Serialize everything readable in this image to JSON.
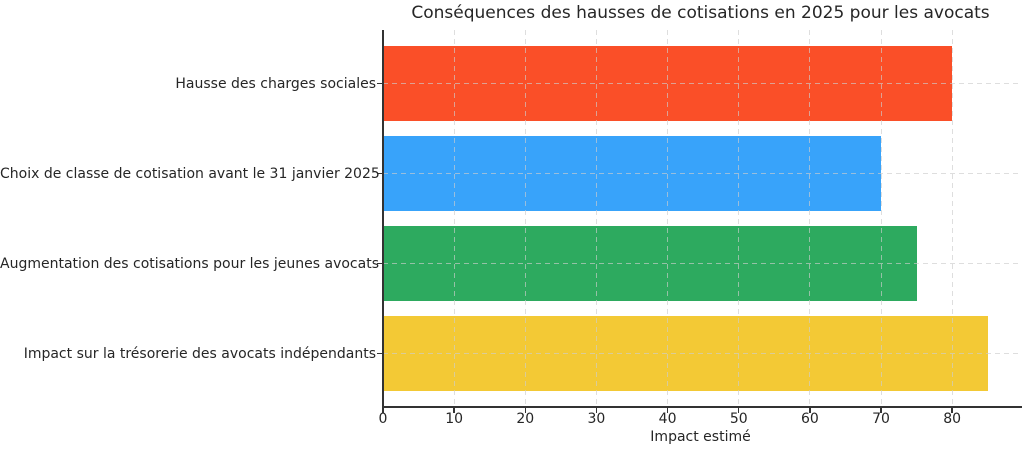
{
  "chart_data": {
    "type": "bar",
    "orientation": "horizontal",
    "title": "Conséquences des hausses de cotisations en 2025 pour les avocats",
    "xlabel": "Impact estimé",
    "ylabel": "",
    "categories": [
      "Hausse des charges sociales",
      "Choix de classe de cotisation avant le 31 janvier 2025",
      "Augmentation des cotisations pour les jeunes avocats",
      "Impact sur la trésorerie des avocats indépendants"
    ],
    "values": [
      80,
      70,
      75,
      85
    ],
    "bar_colors": [
      "#FA4F28",
      "#38A3FA",
      "#2DAA5F",
      "#F3C935"
    ],
    "xticks": [
      0,
      10,
      20,
      30,
      40,
      50,
      60,
      70,
      80
    ],
    "xlim": [
      0,
      89.25
    ],
    "grid": true,
    "grid_line_style": "dashed",
    "grid_color": "#cdcdcd",
    "axis_color": "#333333",
    "text_color": "#262626",
    "legend": "none"
  }
}
